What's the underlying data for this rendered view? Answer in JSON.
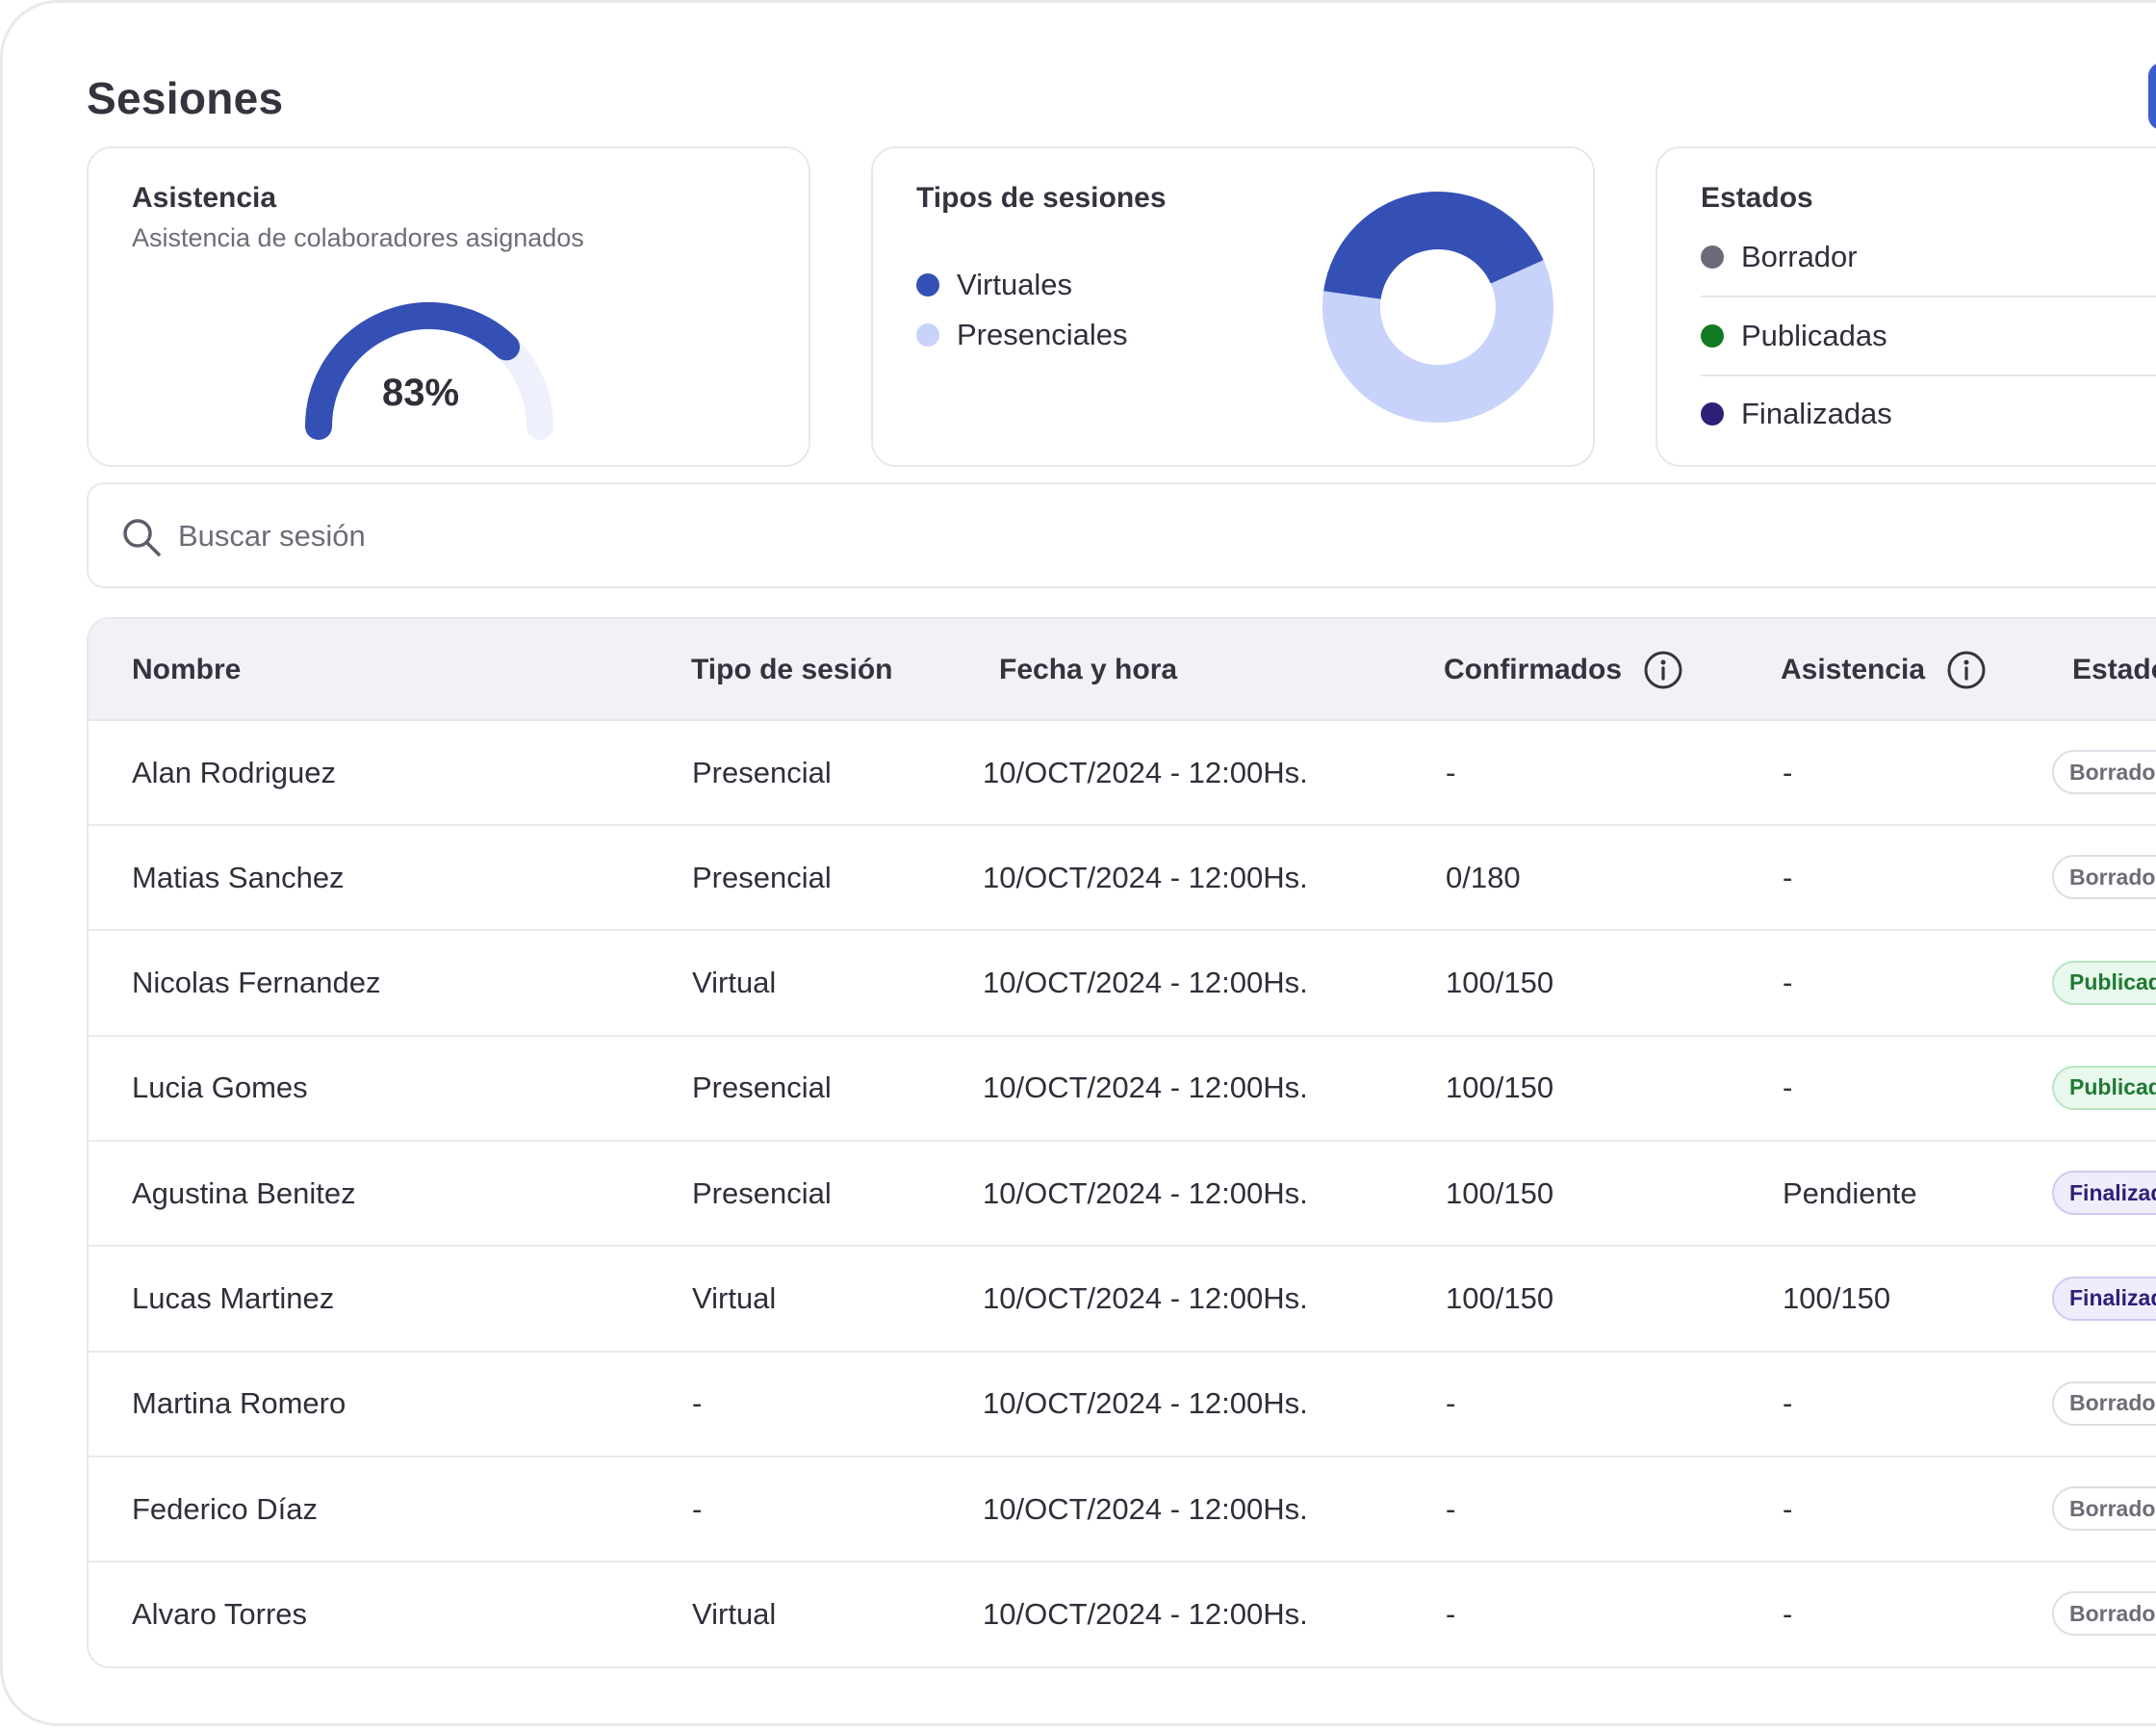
{
  "page": {
    "title": "Sesiones"
  },
  "cards": {
    "asistencia": {
      "title": "Asistencia",
      "subtitle": "Asistencia de colaboradores asignados",
      "value_label": "83%",
      "fraction": 0.83,
      "colors": {
        "fill": "#3450b5",
        "track": "#eef0fb"
      }
    },
    "tipos": {
      "title": "Tipos de sesiones",
      "legend": [
        {
          "label": "Virtuales",
          "color": "#3450b5"
        },
        {
          "label": "Presenciales",
          "color": "#c8d3fb"
        }
      ],
      "chart_fraction_virtuales": 0.3
    },
    "estados": {
      "title": "Estados",
      "items": [
        {
          "label": "Borrador",
          "color": "#6b6b78"
        },
        {
          "label": "Publicadas",
          "color": "#0f7a23"
        },
        {
          "label": "Finalizadas",
          "color": "#2c2177"
        }
      ]
    }
  },
  "search": {
    "placeholder": "Buscar sesión",
    "value": "",
    "icon": "search-icon"
  },
  "table": {
    "headers": {
      "nombre": "Nombre",
      "tipo": "Tipo de sesión",
      "fecha": "Fecha y hora",
      "confirmados": "Confirmados",
      "asistencia": "Asistencia",
      "estado": "Estado"
    },
    "rows": [
      {
        "nombre": "Alan Rodriguez",
        "tipo": "Presencial",
        "fecha": "10/OCT/2024 - 12:00Hs.",
        "confirmados": "-",
        "asistencia": "-",
        "estado": "Borrador"
      },
      {
        "nombre": "Matias Sanchez",
        "tipo": "Presencial",
        "fecha": "10/OCT/2024 - 12:00Hs.",
        "confirmados": "0/180",
        "asistencia": "-",
        "estado": "Borrador"
      },
      {
        "nombre": "Nicolas Fernandez",
        "tipo": "Virtual",
        "fecha": "10/OCT/2024 - 12:00Hs.",
        "confirmados": "100/150",
        "asistencia": "-",
        "estado": "Publicada"
      },
      {
        "nombre": "Lucia Gomes",
        "tipo": "Presencial",
        "fecha": "10/OCT/2024 - 12:00Hs.",
        "confirmados": "100/150",
        "asistencia": "-",
        "estado": "Publicada"
      },
      {
        "nombre": "Agustina Benitez",
        "tipo": "Presencial",
        "fecha": "10/OCT/2024 - 12:00Hs.",
        "confirmados": "100/150",
        "asistencia": "Pendiente",
        "estado": "Finalizada"
      },
      {
        "nombre": "Lucas Martinez",
        "tipo": "Virtual",
        "fecha": "10/OCT/2024 - 12:00Hs.",
        "confirmados": "100/150",
        "asistencia": "100/150",
        "estado": "Finalizada"
      },
      {
        "nombre": "Martina Romero",
        "tipo": "-",
        "fecha": "10/OCT/2024 - 12:00Hs.",
        "confirmados": "-",
        "asistencia": "-",
        "estado": "Borrador"
      },
      {
        "nombre": "Federico Díaz",
        "tipo": "-",
        "fecha": "10/OCT/2024 - 12:00Hs.",
        "confirmados": "-",
        "asistencia": "-",
        "estado": "Borrador"
      },
      {
        "nombre": "Alvaro Torres",
        "tipo": "Virtual",
        "fecha": "10/OCT/2024 - 12:00Hs.",
        "confirmados": "-",
        "asistencia": "-",
        "estado": "Borrador"
      }
    ]
  }
}
